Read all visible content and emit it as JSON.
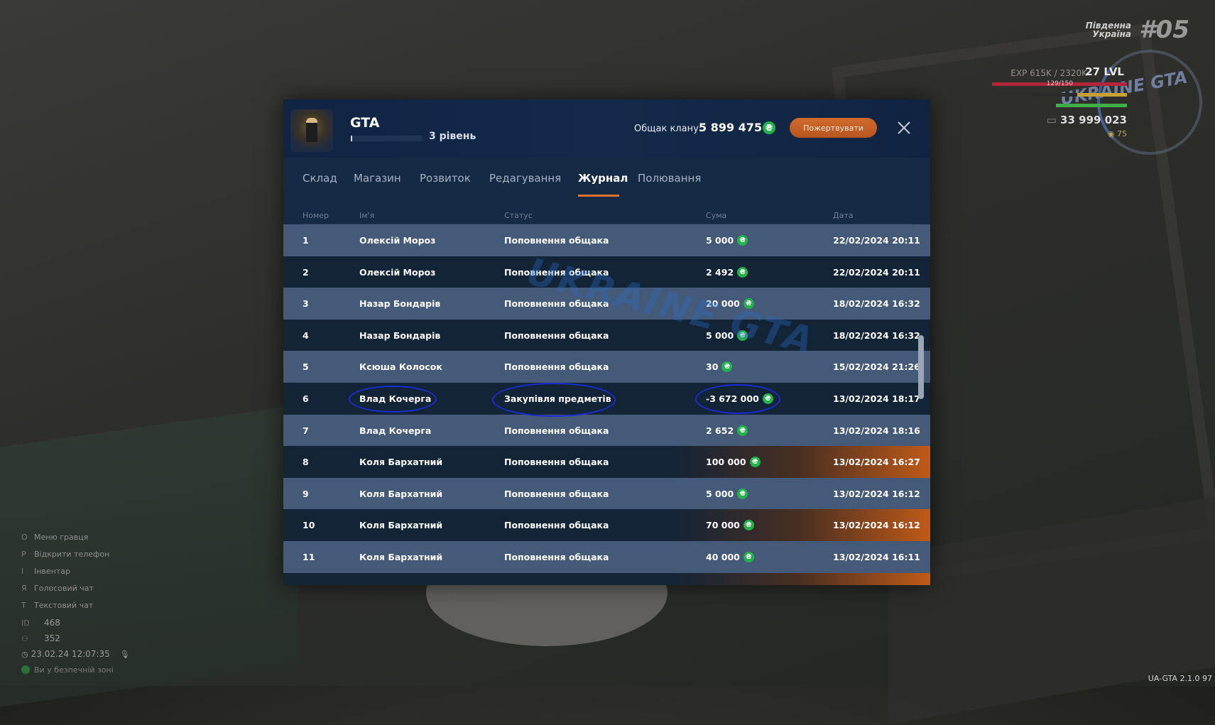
{
  "hud": {
    "server_line1": "Південна",
    "server_line2": "Україна",
    "server_number": "#05",
    "exp": "EXP 615K / 2320K",
    "level": "27 LVL",
    "health": "129/150",
    "money": "33 999 023",
    "coins": "75",
    "logo": "UKRAINE GTA"
  },
  "keybinds": [
    {
      "key": "O",
      "label": "Меню гравця"
    },
    {
      "key": "P",
      "label": "Відкрити телефон"
    },
    {
      "key": "I",
      "label": "Інвентар"
    },
    {
      "key": "Я",
      "label": "Голосовий чат"
    },
    {
      "key": "T",
      "label": "Текстовий чат"
    }
  ],
  "stats": {
    "id_label": "ID",
    "id_value": "468",
    "online_value": "352",
    "datetime": "23.02.24 12:07:35",
    "safe_zone": "Ви у безпечній зоні"
  },
  "version": "UA-GTA 2.1.0 97",
  "clan": {
    "name": "GTA",
    "level_label": "3 рівень",
    "level_progress": 0.02,
    "treasury_label": "Общак клану:",
    "treasury_value": "5 899 475",
    "donate_label": "Пожертвувати"
  },
  "tabs": [
    "Склад",
    "Магазин",
    "Розвиток",
    "Редагування",
    "Журнал",
    "Полювання"
  ],
  "active_tab": "Журнал",
  "columns": {
    "num": "Номер",
    "name": "Ім'я",
    "status": "Статус",
    "sum": "Сума",
    "date": "Дата"
  },
  "rows": [
    {
      "num": "1",
      "name": "Олексій Мороз",
      "status": "Поповнення общака",
      "sum": "5 000",
      "date": "22/02/2024 20:11"
    },
    {
      "num": "2",
      "name": "Олексій Мороз",
      "status": "Поповнення общака",
      "sum": "2 492",
      "date": "22/02/2024 20:11"
    },
    {
      "num": "3",
      "name": "Назар Бондарів",
      "status": "Поповнення общака",
      "sum": "20 000",
      "date": "18/02/2024 16:32"
    },
    {
      "num": "4",
      "name": "Назар Бондарів",
      "status": "Поповнення общака",
      "sum": "5 000",
      "date": "18/02/2024 16:32"
    },
    {
      "num": "5",
      "name": "Ксюша Колосок",
      "status": "Поповнення общака",
      "sum": "30",
      "date": "15/02/2024 21:26"
    },
    {
      "num": "6",
      "name": "Влад Кочерга",
      "status": "Закупівля предметів",
      "sum": "-3 672 000",
      "date": "13/02/2024 18:17"
    },
    {
      "num": "7",
      "name": "Влад Кочерга",
      "status": "Поповнення общака",
      "sum": "2 652",
      "date": "13/02/2024 18:16"
    },
    {
      "num": "8",
      "name": "Коля Бархатний",
      "status": "Поповнення общака",
      "sum": "100 000",
      "date": "13/02/2024 16:27"
    },
    {
      "num": "9",
      "name": "Коля Бархатний",
      "status": "Поповнення общака",
      "sum": "5 000",
      "date": "13/02/2024 16:12"
    },
    {
      "num": "10",
      "name": "Коля Бархатний",
      "status": "Поповнення общака",
      "sum": "70 000",
      "date": "13/02/2024 16:12"
    },
    {
      "num": "11",
      "name": "Коля Бархатний",
      "status": "Поповнення общака",
      "sum": "40 000",
      "date": "13/02/2024 16:11"
    }
  ],
  "currency_icon": "coin-icon",
  "colors": {
    "accent": "#e0722e",
    "coin": "#22b34a",
    "annotation": "#1b2cd6"
  }
}
